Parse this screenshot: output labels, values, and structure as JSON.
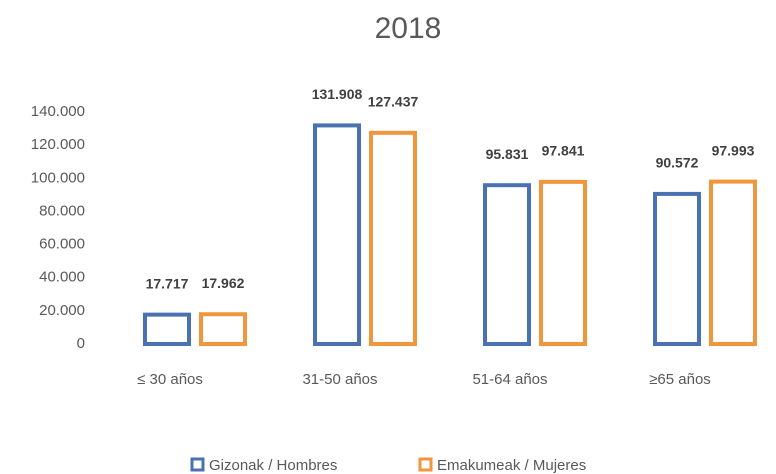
{
  "chart_data": {
    "type": "bar",
    "title": "2018",
    "categories": [
      "≤ 30 años",
      "31-50 años",
      "51-64 años",
      "≥65 años"
    ],
    "series": [
      {
        "name": "Gizonak / Hombres",
        "color": "#4a72b0",
        "values": [
          17717,
          131908,
          95831,
          90572
        ],
        "value_labels": [
          "17.717",
          "131.908",
          "95.831",
          "90.572"
        ]
      },
      {
        "name": "Emakumeak / Mujeres",
        "color": "#f0963c",
        "values": [
          17962,
          127437,
          97841,
          97993
        ],
        "value_labels": [
          "17.962",
          "127.437",
          "97.841",
          "97.993"
        ]
      }
    ],
    "ylim": [
      0,
      140000
    ],
    "yticks": [
      0,
      {
        "value": 20000,
        "label": "20.000"
      },
      {
        "value": 40000,
        "label": "40.000"
      },
      {
        "value": 60000,
        "label": "60.000"
      },
      {
        "value": 80000,
        "label": "80.000"
      },
      {
        "value": 100000,
        "label": "100.000"
      },
      {
        "value": 120000,
        "label": "120.000"
      },
      {
        "value": 140000,
        "label": "140.000"
      }
    ],
    "grid": false,
    "legend": "bottom"
  }
}
